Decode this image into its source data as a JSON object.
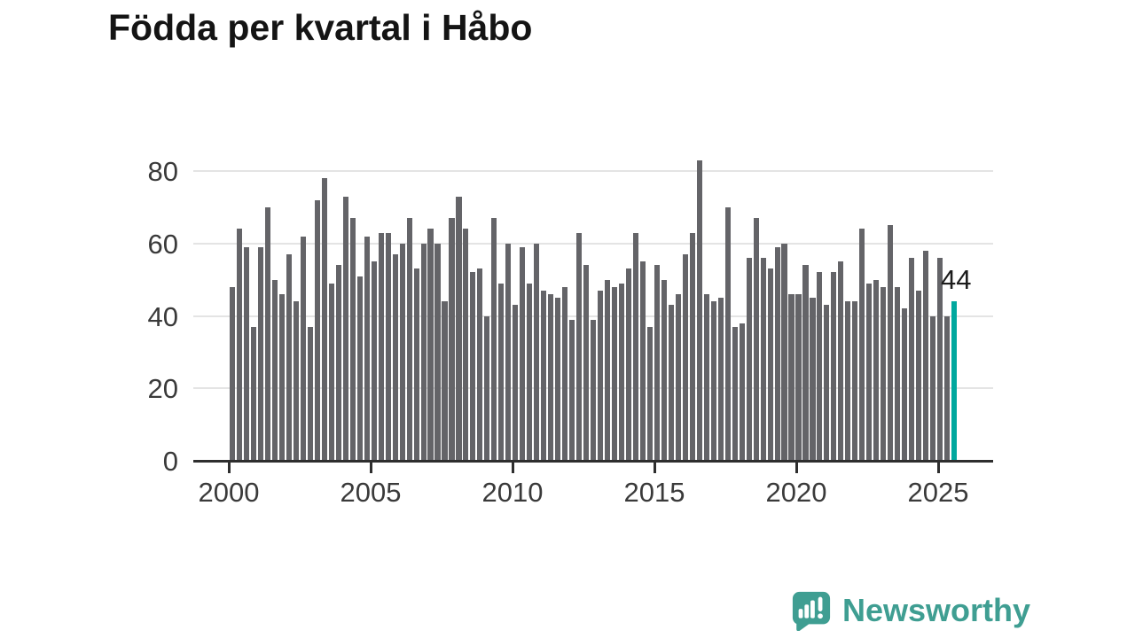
{
  "title": "Födda per kvartal i Håbo",
  "chart_data": {
    "type": "bar",
    "title": "Födda per kvartal i Håbo",
    "xlabel": "",
    "ylabel": "",
    "x_start": "2000 Q1",
    "x_end": "2025 Q3",
    "frequency": "quarterly",
    "x_tick_labels": [
      "2000",
      "2005",
      "2010",
      "2015",
      "2020",
      "2025"
    ],
    "y_tick_labels": [
      "0",
      "20",
      "40",
      "60",
      "80"
    ],
    "y_tick_values": [
      0,
      20,
      40,
      60,
      80
    ],
    "gridline_values": [
      20,
      40,
      60,
      80
    ],
    "ylim": [
      0,
      85
    ],
    "grid": true,
    "legend": false,
    "bar_color": "#646468",
    "highlight_color": "#00a89e",
    "values": [
      48,
      64,
      59,
      37,
      59,
      70,
      50,
      46,
      57,
      44,
      62,
      37,
      72,
      78,
      49,
      54,
      73,
      67,
      51,
      62,
      55,
      63,
      63,
      57,
      60,
      67,
      53,
      60,
      64,
      60,
      44,
      67,
      73,
      64,
      52,
      53,
      40,
      67,
      49,
      60,
      43,
      59,
      49,
      60,
      47,
      46,
      45,
      48,
      39,
      63,
      54,
      39,
      47,
      50,
      48,
      49,
      53,
      63,
      55,
      37,
      54,
      50,
      43,
      46,
      57,
      63,
      83,
      46,
      44,
      45,
      70,
      37,
      38,
      56,
      67,
      56,
      53,
      59,
      60,
      46,
      46,
      54,
      45,
      52,
      43,
      52,
      55,
      44,
      44,
      64,
      49,
      50,
      48,
      65,
      48,
      42,
      56,
      47,
      58,
      40,
      56,
      40,
      44
    ],
    "highlight": {
      "index": 102,
      "value": 44,
      "label": "44"
    }
  },
  "callout": {
    "label": "44"
  },
  "branding": {
    "logo_text": "Newsworthy",
    "logo_color": "#3f9e92",
    "logo_icon": "newsworthy-bar-chart-speech-bubble"
  },
  "colors": {
    "background": "#ffffff",
    "bar": "#646468",
    "highlight": "#00a89e",
    "grid": "#e4e4e4",
    "axis": "#2e2e2e",
    "text": "#3a3a3a",
    "title": "#141414"
  }
}
